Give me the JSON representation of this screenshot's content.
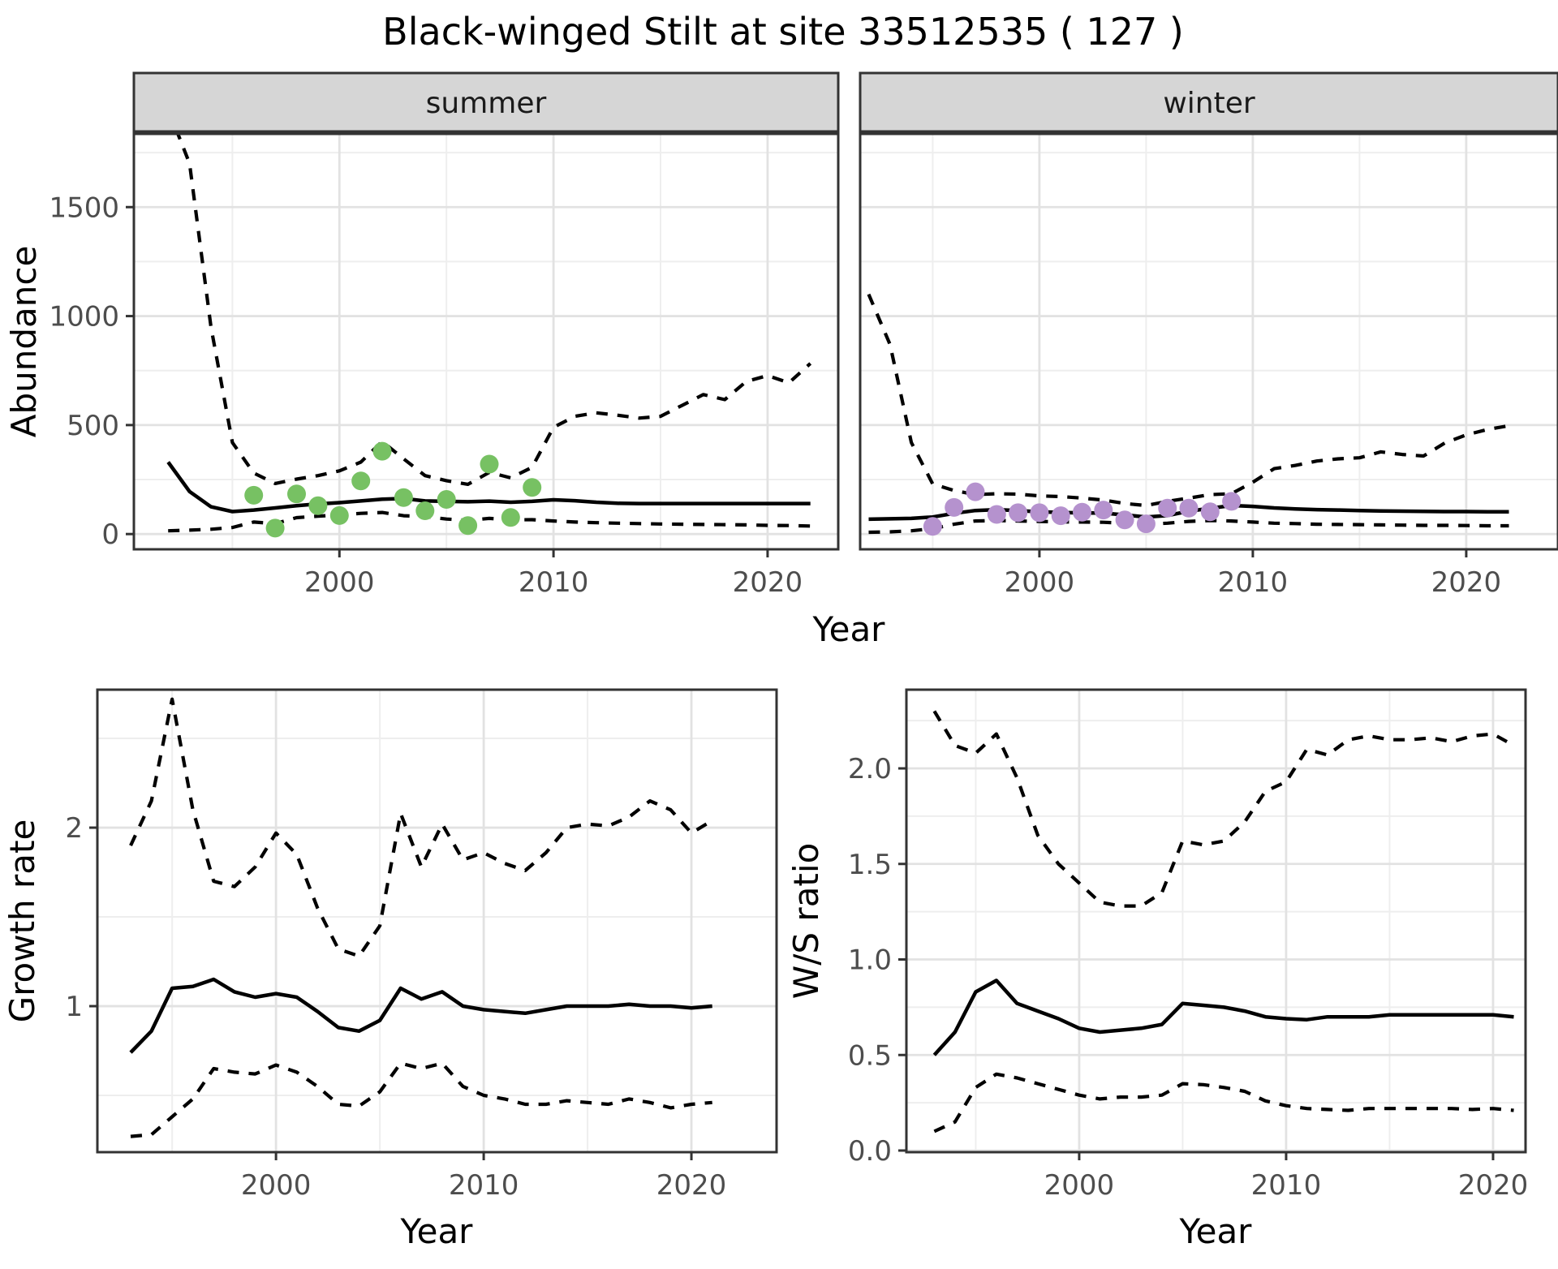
{
  "title": "Black-winged Stilt at site 33512535 ( 127 )",
  "colors": {
    "summer_points": "#77c163",
    "winter_points": "#b592ce",
    "median_line": "#000000",
    "ci_line": "#000000",
    "grid_major": "#e2e2e2",
    "grid_minor": "#eeeeee",
    "strip_bg": "#d6d6d6",
    "panel_border": "#333333",
    "tick_mark": "#333333",
    "tick_label": "#4d4d4d",
    "panel_bg": "#ffffff"
  },
  "chart_data": [
    {
      "type": "line",
      "facet": "summer",
      "ylabel": "Abundance",
      "xlabel": "Year",
      "xlim": [
        1990.4,
        2023.3
      ],
      "ylim": [
        -70,
        1836
      ],
      "x_major_ticks": [
        2000,
        2010,
        2020
      ],
      "x_minor_gridlines": [
        1995,
        2005,
        2015
      ],
      "y_major_ticks": [
        0,
        500,
        1000,
        1500
      ],
      "y_minor_gridlines": [
        250,
        750,
        1250,
        1750
      ],
      "show_y_tick_labels": true,
      "series": [
        {
          "name": "median",
          "style": "solid",
          "x": [
            1992,
            1993,
            1994,
            1995,
            1996,
            1997,
            1998,
            1999,
            2000,
            2001,
            2002,
            2003,
            2004,
            2005,
            2006,
            2007,
            2008,
            2009,
            2010,
            2011,
            2012,
            2013,
            2014,
            2015,
            2016,
            2017,
            2018,
            2019,
            2020,
            2021,
            2022
          ],
          "y": [
            330,
            195,
            125,
            103,
            110,
            120,
            130,
            138,
            144,
            152,
            160,
            163,
            152,
            150,
            148,
            151,
            146,
            150,
            157,
            153,
            146,
            141,
            140,
            140,
            140,
            140,
            140,
            140,
            140,
            140,
            140
          ]
        },
        {
          "name": "ci_upper_97_5",
          "style": "dashed",
          "x": [
            1992,
            1993,
            1994,
            1995,
            1996,
            1997,
            1998,
            1999,
            2000,
            2001,
            2002,
            2003,
            2004,
            2005,
            2006,
            2007,
            2008,
            2009,
            2010,
            2011,
            2012,
            2013,
            2014,
            2015,
            2016,
            2017,
            2018,
            2019,
            2020,
            2021,
            2022
          ],
          "y": [
            1950,
            1700,
            950,
            420,
            280,
            232,
            252,
            268,
            290,
            330,
            425,
            345,
            268,
            245,
            228,
            283,
            258,
            306,
            490,
            540,
            556,
            545,
            532,
            540,
            590,
            640,
            617,
            700,
            727,
            694,
            783
          ]
        },
        {
          "name": "ci_lower_2_5",
          "style": "dashed",
          "x": [
            1992,
            1993,
            1994,
            1995,
            1996,
            1997,
            1998,
            1999,
            2000,
            2001,
            2002,
            2003,
            2004,
            2005,
            2006,
            2007,
            2008,
            2009,
            2010,
            2011,
            2012,
            2013,
            2014,
            2015,
            2016,
            2017,
            2018,
            2019,
            2020,
            2021,
            2022
          ],
          "y": [
            15,
            18,
            22,
            30,
            55,
            48,
            75,
            82,
            88,
            95,
            99,
            84,
            80,
            69,
            63,
            72,
            65,
            66,
            60,
            55,
            52,
            50,
            48,
            46,
            45,
            44,
            43,
            42,
            40,
            39,
            37
          ]
        }
      ],
      "points": {
        "name": "observed-counts-summer",
        "color_key": "summer_points",
        "x": [
          1996,
          1997,
          1998,
          1999,
          2000,
          2001,
          2002,
          2003,
          2004,
          2005,
          2006,
          2007,
          2008,
          2009
        ],
        "y": [
          178,
          27,
          184,
          130,
          85,
          244,
          380,
          167,
          107,
          159,
          39,
          321,
          76,
          214
        ]
      }
    },
    {
      "type": "line",
      "facet": "winter",
      "ylabel": "Abundance",
      "xlabel": "Year",
      "xlim": [
        1991.6,
        2024.3
      ],
      "ylim": [
        -70,
        1836
      ],
      "x_major_ticks": [
        2000,
        2010,
        2020
      ],
      "x_minor_gridlines": [
        1995,
        2005,
        2015
      ],
      "y_major_ticks": [
        0,
        500,
        1000,
        1500
      ],
      "y_minor_gridlines": [
        250,
        750,
        1250,
        1750
      ],
      "show_y_tick_labels": false,
      "series": [
        {
          "name": "median",
          "style": "solid",
          "x": [
            1992,
            1993,
            1994,
            1995,
            1996,
            1997,
            1998,
            1999,
            2000,
            2001,
            2002,
            2003,
            2004,
            2005,
            2006,
            2007,
            2008,
            2009,
            2010,
            2011,
            2012,
            2013,
            2014,
            2015,
            2016,
            2017,
            2018,
            2019,
            2020,
            2021,
            2022
          ],
          "y": [
            68,
            70,
            72,
            78,
            95,
            108,
            112,
            108,
            102,
            99,
            97,
            96,
            88,
            78,
            85,
            105,
            118,
            131,
            127,
            120,
            115,
            112,
            110,
            108,
            106,
            105,
            104,
            103,
            103,
            102,
            102
          ]
        },
        {
          "name": "ci_upper_97_5",
          "style": "dashed",
          "x": [
            1992,
            1993,
            1994,
            1995,
            1996,
            1997,
            1998,
            1999,
            2000,
            2001,
            2002,
            2003,
            2004,
            2005,
            2006,
            2007,
            2008,
            2009,
            2010,
            2011,
            2012,
            2013,
            2014,
            2015,
            2016,
            2017,
            2018,
            2019,
            2020,
            2021,
            2022
          ],
          "y": [
            1100,
            870,
            420,
            230,
            200,
            181,
            185,
            183,
            175,
            172,
            165,
            156,
            140,
            131,
            150,
            165,
            181,
            185,
            238,
            300,
            315,
            335,
            345,
            350,
            377,
            365,
            358,
            418,
            455,
            480,
            497
          ]
        },
        {
          "name": "ci_lower_2_5",
          "style": "dashed",
          "x": [
            1992,
            1993,
            1994,
            1995,
            1996,
            1997,
            1998,
            1999,
            2000,
            2001,
            2002,
            2003,
            2004,
            2005,
            2006,
            2007,
            2008,
            2009,
            2010,
            2011,
            2012,
            2013,
            2014,
            2015,
            2016,
            2017,
            2018,
            2019,
            2020,
            2021,
            2022
          ],
          "y": [
            8,
            10,
            15,
            25,
            45,
            60,
            62,
            60,
            58,
            56,
            55,
            54,
            50,
            45,
            50,
            58,
            62,
            60,
            55,
            50,
            48,
            45,
            44,
            43,
            42,
            41,
            40,
            40,
            39,
            38,
            38
          ]
        }
      ],
      "points": {
        "name": "observed-counts-winter",
        "color_key": "winter_points",
        "x": [
          1995,
          1996,
          1997,
          1998,
          1999,
          2000,
          2001,
          2002,
          2003,
          2004,
          2005,
          2006,
          2007,
          2008,
          2009
        ],
        "y": [
          35,
          122,
          194,
          90,
          98,
          98,
          84,
          100,
          110,
          65,
          47,
          119,
          119,
          102,
          150
        ]
      }
    },
    {
      "type": "line",
      "facet": null,
      "ylabel": "Growth rate",
      "xlabel": "Year",
      "xlim": [
        1991.4,
        2024.1
      ],
      "ylim": [
        0.182,
        2.773
      ],
      "x_major_ticks": [
        2000,
        2010,
        2020
      ],
      "x_minor_gridlines": [
        1995,
        2005,
        2015
      ],
      "y_major_ticks": [
        1,
        2
      ],
      "y_minor_gridlines": [
        0.5,
        1.5,
        2.5
      ],
      "show_y_tick_labels": true,
      "series": [
        {
          "name": "median",
          "style": "solid",
          "x": [
            1993,
            1994,
            1995,
            1996,
            1997,
            1998,
            1999,
            2000,
            2001,
            2002,
            2003,
            2004,
            2005,
            2006,
            2007,
            2008,
            2009,
            2010,
            2011,
            2012,
            2013,
            2014,
            2015,
            2016,
            2017,
            2018,
            2019,
            2020,
            2021
          ],
          "y": [
            0.74,
            0.86,
            1.1,
            1.11,
            1.15,
            1.08,
            1.05,
            1.07,
            1.05,
            0.97,
            0.88,
            0.86,
            0.92,
            1.1,
            1.04,
            1.08,
            1.0,
            0.98,
            0.97,
            0.96,
            0.98,
            1.0,
            1.0,
            1.0,
            1.01,
            1.0,
            1.0,
            0.99,
            1.0
          ]
        },
        {
          "name": "ci_upper_97_5",
          "style": "dashed",
          "x": [
            1993,
            1994,
            1995,
            1996,
            1997,
            1998,
            1999,
            2000,
            2001,
            2002,
            2003,
            2004,
            2005,
            2006,
            2007,
            2008,
            2009,
            2010,
            2011,
            2012,
            2013,
            2014,
            2015,
            2016,
            2017,
            2018,
            2019,
            2020,
            2021
          ],
          "y": [
            1.9,
            2.15,
            2.72,
            2.1,
            1.7,
            1.67,
            1.78,
            1.97,
            1.85,
            1.55,
            1.32,
            1.28,
            1.45,
            2.08,
            1.78,
            2.02,
            1.82,
            1.86,
            1.8,
            1.76,
            1.86,
            2.0,
            2.02,
            2.01,
            2.06,
            2.15,
            2.1,
            1.97,
            2.04
          ]
        },
        {
          "name": "ci_lower_2_5",
          "style": "dashed",
          "x": [
            1993,
            1994,
            1995,
            1996,
            1997,
            1998,
            1999,
            2000,
            2001,
            2002,
            2003,
            2004,
            2005,
            2006,
            2007,
            2008,
            2009,
            2010,
            2011,
            2012,
            2013,
            2014,
            2015,
            2016,
            2017,
            2018,
            2019,
            2020,
            2021
          ],
          "y": [
            0.27,
            0.28,
            0.38,
            0.48,
            0.65,
            0.63,
            0.62,
            0.67,
            0.63,
            0.55,
            0.45,
            0.44,
            0.52,
            0.68,
            0.65,
            0.68,
            0.55,
            0.5,
            0.48,
            0.45,
            0.45,
            0.47,
            0.46,
            0.45,
            0.48,
            0.46,
            0.43,
            0.45,
            0.46
          ]
        }
      ],
      "points": null
    },
    {
      "type": "line",
      "facet": null,
      "ylabel": "W/S ratio",
      "xlabel": "Year",
      "xlim": [
        1991.65,
        2021.57
      ],
      "ylim": [
        -0.0085,
        2.412
      ],
      "x_major_ticks": [
        2000,
        2010,
        2020
      ],
      "x_minor_gridlines": [
        1995,
        2005,
        2015
      ],
      "y_major_ticks": [
        0.0,
        0.5,
        1.0,
        1.5,
        2.0
      ],
      "y_minor_gridlines": [
        0.25,
        0.75,
        1.25,
        1.75,
        2.25
      ],
      "y_tick_label_format": "one_decimal",
      "show_y_tick_labels": true,
      "series": [
        {
          "name": "median",
          "style": "solid",
          "x": [
            1993,
            1994,
            1995,
            1996,
            1997,
            1998,
            1999,
            2000,
            2001,
            2002,
            2003,
            2004,
            2005,
            2006,
            2007,
            2008,
            2009,
            2010,
            2011,
            2012,
            2013,
            2014,
            2015,
            2016,
            2017,
            2018,
            2019,
            2020,
            2021
          ],
          "y": [
            0.5,
            0.62,
            0.83,
            0.89,
            0.77,
            0.73,
            0.69,
            0.64,
            0.62,
            0.63,
            0.64,
            0.66,
            0.77,
            0.76,
            0.75,
            0.73,
            0.7,
            0.69,
            0.685,
            0.7,
            0.7,
            0.7,
            0.71,
            0.71,
            0.71,
            0.71,
            0.71,
            0.71,
            0.7
          ]
        },
        {
          "name": "ci_upper_97_5",
          "style": "dashed",
          "x": [
            1993,
            1994,
            1995,
            1996,
            1997,
            1998,
            1999,
            2000,
            2001,
            2002,
            2003,
            2004,
            2005,
            2006,
            2007,
            2008,
            2009,
            2010,
            2011,
            2012,
            2013,
            2014,
            2015,
            2016,
            2017,
            2018,
            2019,
            2020,
            2021
          ],
          "y": [
            2.3,
            2.12,
            2.08,
            2.18,
            1.95,
            1.65,
            1.5,
            1.4,
            1.3,
            1.28,
            1.28,
            1.35,
            1.62,
            1.6,
            1.62,
            1.72,
            1.88,
            1.93,
            2.1,
            2.07,
            2.15,
            2.17,
            2.15,
            2.15,
            2.16,
            2.14,
            2.17,
            2.18,
            2.12
          ]
        },
        {
          "name": "ci_lower_2_5",
          "style": "dashed",
          "x": [
            1993,
            1994,
            1995,
            1996,
            1997,
            1998,
            1999,
            2000,
            2001,
            2002,
            2003,
            2004,
            2005,
            2006,
            2007,
            2008,
            2009,
            2010,
            2011,
            2012,
            2013,
            2014,
            2015,
            2016,
            2017,
            2018,
            2019,
            2020,
            2021
          ],
          "y": [
            0.1,
            0.15,
            0.33,
            0.4,
            0.38,
            0.35,
            0.32,
            0.29,
            0.27,
            0.28,
            0.28,
            0.29,
            0.35,
            0.345,
            0.33,
            0.31,
            0.26,
            0.235,
            0.22,
            0.215,
            0.21,
            0.22,
            0.22,
            0.22,
            0.22,
            0.22,
            0.215,
            0.22,
            0.21
          ]
        }
      ],
      "points": null
    }
  ]
}
